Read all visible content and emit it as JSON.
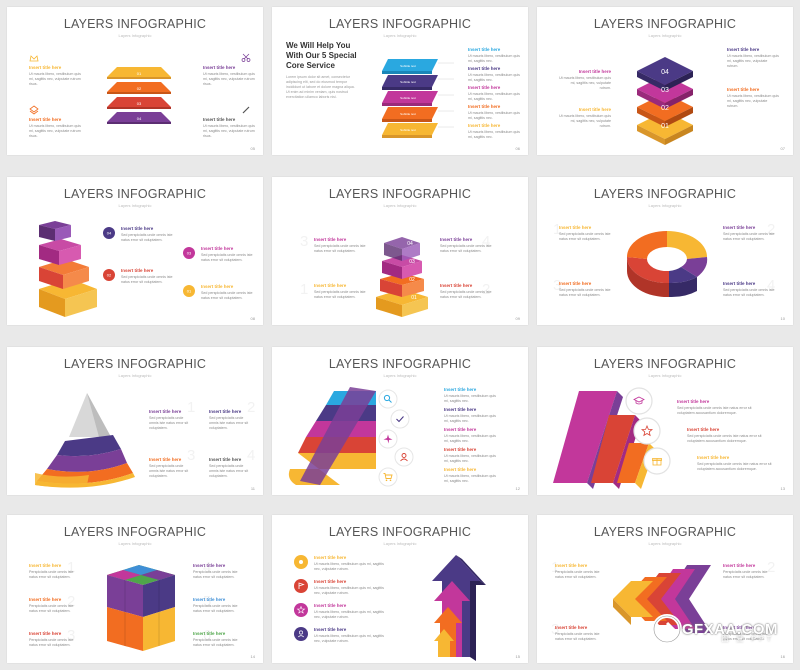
{
  "colors": {
    "yellow": "#f7b733",
    "orange": "#f26d21",
    "red": "#d94436",
    "purple": "#7a3f97",
    "magenta": "#c2379b",
    "indigo": "#4b3a86",
    "blue": "#2aa8e0"
  },
  "slides": [
    {
      "title": "LAYERS INFOGRAPHIC",
      "subtitle": "Layers Infographic",
      "page": "05",
      "layer_labels": [
        "01",
        "02",
        "03",
        "04"
      ],
      "blocks": [
        {
          "heading": "Insert title here",
          "body": "Ut mauris libero, vestibulum quis mi, sagittis nec, vulputate rutrum risus."
        },
        {
          "heading": "Insert title here",
          "body": "Ut mauris libero, vestibulum quis mi, sagittis nec, vulputate rutrum risus."
        },
        {
          "heading": "Insert title here",
          "body": "Ut mauris libero, vestibulum quis mi, sagittis nec, vulputate rutrum risus."
        },
        {
          "heading": "Insert title here",
          "body": "Ut mauris libero, vestibulum quis mi, sagittis nec, vulputate rutrum risus."
        }
      ],
      "icons": [
        "crown-icon",
        "layers-icon",
        "scissors-icon",
        "pen-icon"
      ]
    },
    {
      "title": "LAYERS INFOGRAPHIC",
      "subtitle": "Layers Infographic",
      "page": "06",
      "headline": "We Will Help You With Our 5 Special Core Service",
      "paragraph": "Lorem ipsum dolor sit amet, consectetur adipiscing elit, sed do eiusmod tempor incididunt ut labore et dolore magna aliqua. Ut enim ad minim veniam, quis nostrud exercitation ullamco laboris nisi.",
      "layer_labels": [
        "Subtitle text",
        "Subtitle text",
        "Subtitle text",
        "Subtitle text",
        "Subtitle text"
      ],
      "blocks": [
        {
          "heading": "Insert title here",
          "body": "Ut mauris libero, vestibulum quis mi, sagittis nec."
        },
        {
          "heading": "Insert title here",
          "body": "Ut mauris libero, vestibulum quis mi, sagittis nec."
        },
        {
          "heading": "Insert title here",
          "body": "Ut mauris libero, vestibulum quis mi, sagittis nec."
        },
        {
          "heading": "Insert title here",
          "body": "Ut mauris libero, vestibulum quis mi, sagittis nec."
        },
        {
          "heading": "Insert title here",
          "body": "Ut mauris libero, vestibulum quis mi, sagittis nec."
        }
      ]
    },
    {
      "title": "LAYERS INFOGRAPHIC",
      "subtitle": "Layers Infographic",
      "page": "07",
      "layer_labels": [
        "04",
        "03",
        "02",
        "01"
      ],
      "blocks": [
        {
          "heading": "Insert title here",
          "body": "Ut mauris libero, vestibulum quis mi, sagittis nec, vulputate rutrum."
        },
        {
          "heading": "Insert title here",
          "body": "Ut mauris libero, vestibulum quis mi, sagittis nec, vulputate rutrum."
        },
        {
          "heading": "Insert title here",
          "body": "Ut mauris libero, vestibulum quis mi, sagittis nec, vulputate rutrum."
        },
        {
          "heading": "Insert title here",
          "body": "Ut mauris libero, vestibulum quis mi, sagittis nec, vulputate rutrum."
        }
      ]
    },
    {
      "title": "LAYERS INFOGRAPHIC",
      "subtitle": "Layers Infographic",
      "page": "08",
      "markers": [
        "04",
        "03",
        "02",
        "01"
      ],
      "blocks": [
        {
          "heading": "Insert title here",
          "body": "Sed perspiciatis unde omnis iste natus error sit voluptatem."
        },
        {
          "heading": "Insert title here",
          "body": "Sed perspiciatis unde omnis iste natus error sit voluptatem."
        },
        {
          "heading": "Insert title here",
          "body": "Sed perspiciatis unde omnis iste natus error sit voluptatem."
        },
        {
          "heading": "Insert title here",
          "body": "Sed perspiciatis unde omnis iste natus error sit voluptatem."
        }
      ]
    },
    {
      "title": "LAYERS INFOGRAPHIC",
      "subtitle": "Layers Infographic",
      "page": "09",
      "layer_labels": [
        "04",
        "03",
        "02",
        "01"
      ],
      "big_numbers": [
        "3",
        "4",
        "1",
        "2"
      ],
      "blocks": [
        {
          "heading": "Insert title here",
          "body": "Sed perspiciatis unde omnis iste natus error sit voluptatem."
        },
        {
          "heading": "Insert title here",
          "body": "Sed perspiciatis unde omnis iste natus error sit voluptatem."
        },
        {
          "heading": "Insert title here",
          "body": "Sed perspiciatis unde omnis iste natus error sit voluptatem."
        },
        {
          "heading": "Insert title here",
          "body": "Sed perspiciatis unde omnis iste natus error sit voluptatem."
        }
      ]
    },
    {
      "title": "LAYERS INFOGRAPHIC",
      "subtitle": "Layers Infographic",
      "page": "10",
      "big_numbers": [
        "1",
        "2",
        "3",
        "4"
      ],
      "blocks": [
        {
          "heading": "Insert title here",
          "body": "Sed perspiciatis unde omnis iste natus error sit voluptatem."
        },
        {
          "heading": "Insert title here",
          "body": "Sed perspiciatis unde omnis iste natus error sit voluptatem."
        },
        {
          "heading": "Insert title here",
          "body": "Sed perspiciatis unde omnis iste natus error sit voluptatem."
        },
        {
          "heading": "Insert title here",
          "body": "Sed perspiciatis unde omnis iste natus error sit voluptatem."
        }
      ]
    },
    {
      "title": "LAYERS INFOGRAPHIC",
      "subtitle": "Layers Infographic",
      "page": "11",
      "big_numbers": [
        "1",
        "2",
        "3",
        "4"
      ],
      "blocks": [
        {
          "heading": "Insert title here",
          "body": "Sed perspiciatis unde omnis iste natus error sit voluptatem."
        },
        {
          "heading": "Insert title here",
          "body": "Sed perspiciatis unde omnis iste natus error sit voluptatem."
        },
        {
          "heading": "Insert title here",
          "body": "Sed perspiciatis unde omnis iste natus error sit voluptatem."
        },
        {
          "heading": "Insert title here",
          "body": "Sed perspiciatis unde omnis iste natus error sit voluptatem."
        }
      ]
    },
    {
      "title": "LAYERS INFOGRAPHIC",
      "subtitle": "Layers Infographic",
      "page": "12",
      "icons": [
        "search-icon",
        "check-icon",
        "plane-icon",
        "user-icon",
        "cart-icon"
      ],
      "blocks": [
        {
          "heading": "Insert title here",
          "body": "Ut mauris libero, vestibulum quis mi, sagittis nec."
        },
        {
          "heading": "Insert title here",
          "body": "Ut mauris libero, vestibulum quis mi, sagittis nec."
        },
        {
          "heading": "Insert title here",
          "body": "Ut mauris libero, vestibulum quis mi, sagittis nec."
        },
        {
          "heading": "Insert title here",
          "body": "Ut mauris libero, vestibulum quis mi, sagittis nec."
        },
        {
          "heading": "Insert title here",
          "body": "Ut mauris libero, vestibulum quis mi, sagittis nec."
        }
      ]
    },
    {
      "title": "LAYERS INFOGRAPHIC",
      "subtitle": "Layers Infographic",
      "page": "13",
      "icons": [
        "graduation-cap-icon",
        "star-icon",
        "gift-icon"
      ],
      "blocks": [
        {
          "heading": "Insert title here",
          "body": "Sed perspiciatis unde omnis iste natus error sit voluptatem accusantium doloremque."
        },
        {
          "heading": "Insert title here",
          "body": "Sed perspiciatis unde omnis iste natus error sit voluptatem accusantium doloremque."
        },
        {
          "heading": "Insert title here",
          "body": "Sed perspiciatis unde omnis iste natus error sit voluptatem accusantium doloremque."
        }
      ]
    },
    {
      "title": "LAYERS INFOGRAPHIC",
      "subtitle": "Layers Infographic",
      "page": "14",
      "big_numbers": [
        "1",
        "2",
        "3",
        "4",
        "5",
        "6"
      ],
      "blocks": [
        {
          "heading": "Insert title here",
          "body": "Perspiciatis unde omnis iste natus error sit voluptatem."
        },
        {
          "heading": "Insert title here",
          "body": "Perspiciatis unde omnis iste natus error sit voluptatem."
        },
        {
          "heading": "Insert title here",
          "body": "Perspiciatis unde omnis iste natus error sit voluptatem."
        },
        {
          "heading": "Insert title here",
          "body": "Perspiciatis unde omnis iste natus error sit voluptatem."
        },
        {
          "heading": "Insert title here",
          "body": "Perspiciatis unde omnis iste natus error sit voluptatem."
        },
        {
          "heading": "Insert title here",
          "body": "Perspiciatis unde omnis iste natus error sit voluptatem."
        }
      ]
    },
    {
      "title": "LAYERS INFOGRAPHIC",
      "subtitle": "Layers Infographic",
      "page": "15",
      "icons": [
        "sun-icon",
        "flag-icon",
        "star-icon",
        "user-icon"
      ],
      "blocks": [
        {
          "heading": "Insert title here",
          "body": "Ut mauris libero, vestibulum quis mi, sagittis nec, vulputate rutrum."
        },
        {
          "heading": "Insert title here",
          "body": "Ut mauris libero, vestibulum quis mi, sagittis nec, vulputate rutrum."
        },
        {
          "heading": "Insert title here",
          "body": "Ut mauris libero, vestibulum quis mi, sagittis nec, vulputate rutrum."
        },
        {
          "heading": "Insert title here",
          "body": "Ut mauris libero, vestibulum quis mi, sagittis nec, vulputate rutrum."
        }
      ]
    },
    {
      "title": "LAYERS INFOGRAPHIC",
      "subtitle": "Layers Infographic",
      "page": "16",
      "big_numbers": [
        "1",
        "2",
        "3",
        "4"
      ],
      "blocks": [
        {
          "heading": "Insert title here",
          "body": "Perspiciatis unde omnis iste natus error sit voluptatem."
        },
        {
          "heading": "Insert title here",
          "body": "Perspiciatis unde omnis iste natus error sit voluptatem."
        },
        {
          "heading": "Insert title here",
          "body": "Perspiciatis unde omnis iste natus error sit voluptatem."
        },
        {
          "heading": "Insert title here",
          "body": "Perspiciatis unde omnis iste natus error sit voluptatem."
        }
      ]
    }
  ],
  "watermark": {
    "text": "GFXAA.COM",
    "sub": "图 夏 PPT",
    "logo": "gfxaa-logo-icon"
  }
}
